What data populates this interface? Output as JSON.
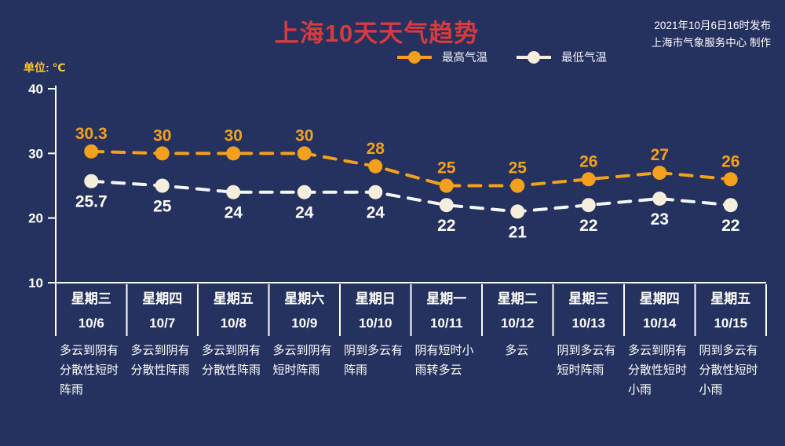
{
  "meta": {
    "background_color": "#25315f",
    "accent_orange": "#f3a11c",
    "accent_cream": "#f5eedc",
    "title_red": "#d73b3e",
    "unit_yellow": "#ffc629",
    "axis_white": "#ffffff"
  },
  "header": {
    "title": "上海10天天气趋势",
    "publish_line1": "2021年10月6日16时发布",
    "publish_line2": "上海市气象服务中心 制作"
  },
  "unit_label": "单位: ℃",
  "legend": {
    "items": [
      {
        "label": "最高气温",
        "color": "#f3a11c"
      },
      {
        "label": "最低气温",
        "color": "#f5eedc"
      }
    ]
  },
  "chart_data": {
    "type": "line",
    "title": "上海10天天气趋势",
    "ylabel": "单位: ℃",
    "ylim": [
      10,
      40
    ],
    "yticks": [
      40,
      30,
      20,
      10
    ],
    "grid": false,
    "legend_position": "top",
    "line_style": "dashed",
    "categories": [
      "10/6",
      "10/7",
      "10/8",
      "10/9",
      "10/10",
      "10/11",
      "10/12",
      "10/13",
      "10/14",
      "10/15"
    ],
    "series": [
      {
        "name": "最高气温",
        "color": "#f3a11c",
        "dot_color": "#f3a11c",
        "label_color": "#f3a11c",
        "label_position": "above",
        "values": [
          30.3,
          30,
          30,
          30,
          28,
          25,
          25,
          26,
          27,
          26
        ]
      },
      {
        "name": "最低气温",
        "color": "#f4f6fa",
        "dot_color": "#f5eedc",
        "label_color": "#ffffff",
        "label_position": "below",
        "values": [
          25.7,
          25,
          24,
          24,
          24,
          22,
          21,
          22,
          23,
          22
        ]
      }
    ]
  },
  "table": {
    "days": [
      {
        "weekday": "星期三",
        "date": "10/6",
        "weather_lines": [
          "多云到阴有",
          "分散性短时",
          "阵雨"
        ]
      },
      {
        "weekday": "星期四",
        "date": "10/7",
        "weather_lines": [
          "多云到阴有",
          "分散性阵雨"
        ]
      },
      {
        "weekday": "星期五",
        "date": "10/8",
        "weather_lines": [
          "多云到阴有",
          "分散性阵雨"
        ]
      },
      {
        "weekday": "星期六",
        "date": "10/9",
        "weather_lines": [
          "多云到阴有",
          "短时阵雨"
        ]
      },
      {
        "weekday": "星期日",
        "date": "10/10",
        "weather_lines": [
          "阴到多云有",
          "阵雨"
        ]
      },
      {
        "weekday": "星期一",
        "date": "10/11",
        "weather_lines": [
          "阴有短时小",
          "雨转多云"
        ]
      },
      {
        "weekday": "星期二",
        "date": "10/12",
        "weather_lines": [
          "多云"
        ]
      },
      {
        "weekday": "星期三",
        "date": "10/13",
        "weather_lines": [
          "阴到多云有",
          "短时阵雨"
        ]
      },
      {
        "weekday": "星期四",
        "date": "10/14",
        "weather_lines": [
          "多云到阴有",
          "分散性短时",
          "小雨"
        ]
      },
      {
        "weekday": "星期五",
        "date": "10/15",
        "weather_lines": [
          "阴到多云有",
          "分散性短时",
          "小雨"
        ]
      }
    ]
  }
}
